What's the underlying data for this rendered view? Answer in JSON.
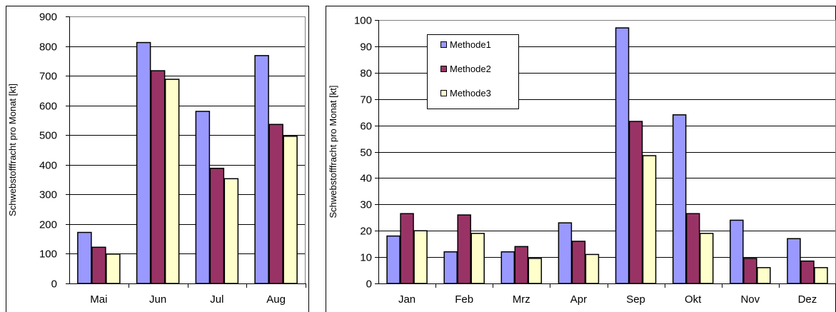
{
  "chart_data": [
    {
      "type": "bar",
      "title": "",
      "xlabel": "",
      "ylabel": "Schwebstofffracht pro Monat [kt]",
      "ylim": [
        0,
        900
      ],
      "yticks": [
        0,
        100,
        200,
        300,
        400,
        500,
        600,
        700,
        800,
        900
      ],
      "categories": [
        "Mai",
        "Jun",
        "Jul",
        "Aug"
      ],
      "grid": true,
      "legend": "none",
      "series": [
        {
          "name": "Methode1",
          "color": "#9999ff",
          "values": [
            172,
            812,
            580,
            768
          ]
        },
        {
          "name": "Methode2",
          "color": "#993366",
          "values": [
            122,
            717,
            388,
            536
          ]
        },
        {
          "name": "Methode3",
          "color": "#ffffcc",
          "values": [
            99,
            688,
            353,
            496
          ]
        }
      ]
    },
    {
      "type": "bar",
      "title": "",
      "xlabel": "",
      "ylabel": "Schwebstofffracht pro Monat [kt]",
      "ylim": [
        0,
        100
      ],
      "yticks": [
        0,
        10,
        20,
        30,
        40,
        50,
        60,
        70,
        80,
        90,
        100
      ],
      "categories": [
        "Jan",
        "Feb",
        "Mrz",
        "Apr",
        "Sep",
        "Okt",
        "Nov",
        "Dez"
      ],
      "grid": true,
      "legend": "top-left",
      "series": [
        {
          "name": "Methode1",
          "color": "#9999ff",
          "values": [
            18,
            12,
            12,
            23,
            97,
            64,
            24,
            17
          ]
        },
        {
          "name": "Methode2",
          "color": "#993366",
          "values": [
            26.5,
            26,
            14,
            16,
            61.5,
            26.5,
            9.5,
            8.5
          ]
        },
        {
          "name": "Methode3",
          "color": "#ffffcc",
          "values": [
            20,
            19,
            9.5,
            11,
            48.5,
            19,
            6,
            6
          ]
        }
      ]
    }
  ]
}
